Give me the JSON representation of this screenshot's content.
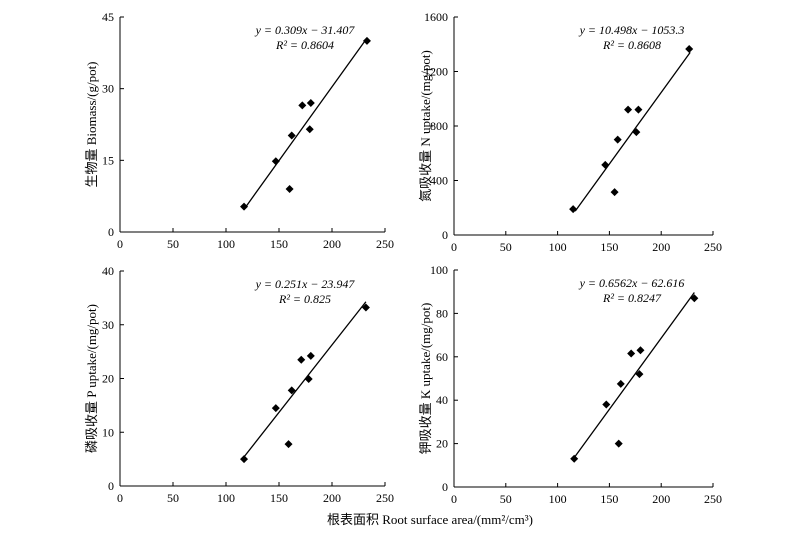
{
  "x_axis_label": "根表面积 Root surface area/(mm²/cm³)",
  "chart_data": [
    {
      "type": "scatter",
      "panel": "biomass",
      "ylabel": "生物量 Biomass/(g/pot)",
      "xlim": [
        0,
        250
      ],
      "ylim": [
        0,
        45
      ],
      "xticks": [
        0,
        50,
        100,
        150,
        200,
        250
      ],
      "yticks": [
        0,
        15,
        30,
        45
      ],
      "equation": "y = 0.309x − 31.407",
      "r2": "R² = 0.8604",
      "fit": {
        "slope": 0.309,
        "intercept": -31.407,
        "x_range": [
          117,
          233
        ]
      },
      "points": [
        {
          "x": 117,
          "y": 5.3
        },
        {
          "x": 147,
          "y": 14.8
        },
        {
          "x": 160,
          "y": 9.0
        },
        {
          "x": 162,
          "y": 20.2
        },
        {
          "x": 172,
          "y": 26.5
        },
        {
          "x": 180,
          "y": 27.0
        },
        {
          "x": 179,
          "y": 21.5
        },
        {
          "x": 233,
          "y": 40.0
        }
      ]
    },
    {
      "type": "scatter",
      "panel": "n_uptake",
      "ylabel": "氮吸收量 N uptake/(mg/pot)",
      "xlim": [
        0,
        250
      ],
      "ylim": [
        0,
        1600
      ],
      "xticks": [
        0,
        50,
        100,
        150,
        200,
        250
      ],
      "yticks": [
        0,
        400,
        800,
        1200,
        1600
      ],
      "equation": "y = 10.498x − 1053.3",
      "r2": "R² = 0.8608",
      "fit": {
        "slope": 10.498,
        "intercept": -1053.3,
        "x_range": [
          117,
          228
        ]
      },
      "points": [
        {
          "x": 115,
          "y": 190
        },
        {
          "x": 146,
          "y": 515
        },
        {
          "x": 155,
          "y": 315
        },
        {
          "x": 158,
          "y": 700
        },
        {
          "x": 168,
          "y": 920
        },
        {
          "x": 176,
          "y": 755
        },
        {
          "x": 178,
          "y": 920
        },
        {
          "x": 227,
          "y": 1365
        }
      ]
    },
    {
      "type": "scatter",
      "panel": "p_uptake",
      "ylabel": "磷吸收量 P uptake/(mg/pot)",
      "xlim": [
        0,
        250
      ],
      "ylim": [
        0,
        40
      ],
      "xticks": [
        0,
        50,
        100,
        150,
        200,
        250
      ],
      "yticks": [
        0,
        10,
        20,
        30,
        40
      ],
      "equation": "y = 0.251x − 23.947",
      "r2": "R² = 0.825",
      "fit": {
        "slope": 0.251,
        "intercept": -23.947,
        "x_range": [
          116,
          232
        ]
      },
      "points": [
        {
          "x": 117,
          "y": 5.0
        },
        {
          "x": 147,
          "y": 14.5
        },
        {
          "x": 159,
          "y": 7.8
        },
        {
          "x": 162,
          "y": 17.8
        },
        {
          "x": 171,
          "y": 23.5
        },
        {
          "x": 180,
          "y": 24.2
        },
        {
          "x": 178,
          "y": 19.9
        },
        {
          "x": 232,
          "y": 33.2
        }
      ]
    },
    {
      "type": "scatter",
      "panel": "k_uptake",
      "ylabel": "钾吸收量 K uptake/(mg/pot)",
      "xlim": [
        0,
        250
      ],
      "ylim": [
        0,
        100
      ],
      "xticks": [
        0,
        50,
        100,
        150,
        200,
        250
      ],
      "yticks": [
        0,
        20,
        40,
        60,
        80,
        100
      ],
      "equation": "y = 0.6562x − 62.616",
      "r2": "R² = 0.8247",
      "fit": {
        "slope": 0.6562,
        "intercept": -62.616,
        "x_range": [
          117,
          232
        ]
      },
      "points": [
        {
          "x": 116,
          "y": 13
        },
        {
          "x": 147,
          "y": 38
        },
        {
          "x": 159,
          "y": 20
        },
        {
          "x": 161,
          "y": 47.5
        },
        {
          "x": 171,
          "y": 61.5
        },
        {
          "x": 180,
          "y": 63
        },
        {
          "x": 179,
          "y": 52
        },
        {
          "x": 232,
          "y": 87
        }
      ]
    }
  ]
}
